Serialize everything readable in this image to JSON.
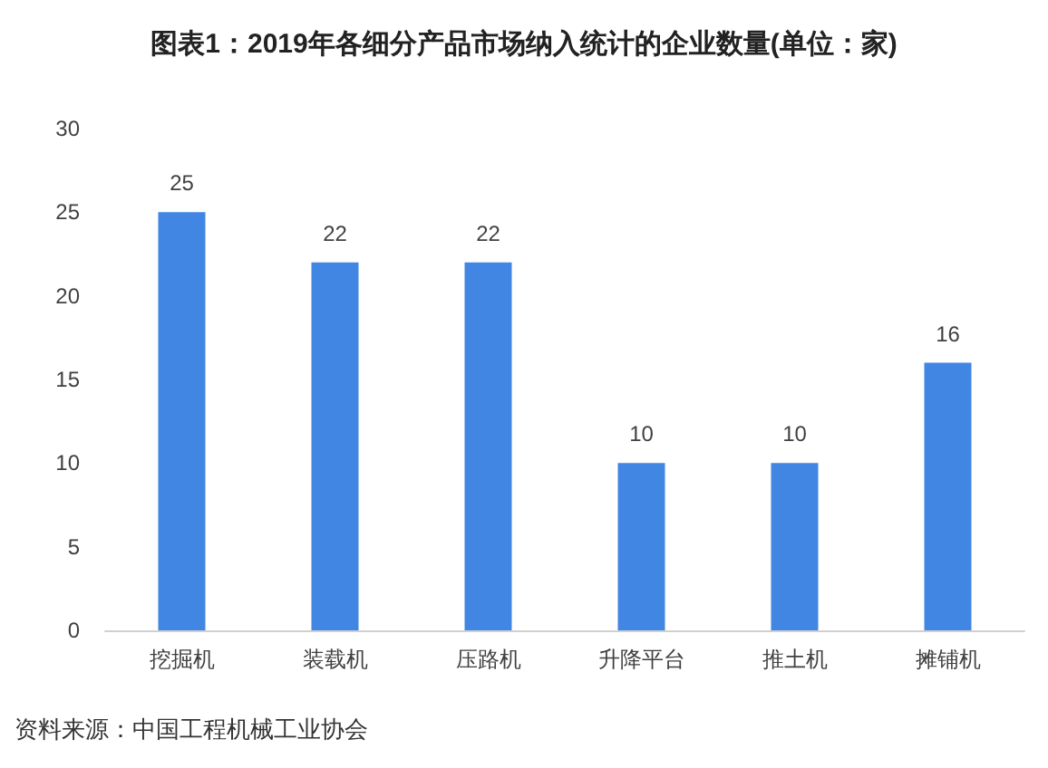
{
  "chart_data": {
    "type": "bar",
    "title": "图表1：2019年各细分产品市场纳入统计的企业数量(单位：家)",
    "categories": [
      "挖掘机",
      "装载机",
      "压路机",
      "升降平台",
      "推土机",
      "摊铺机"
    ],
    "values": [
      25,
      22,
      22,
      10,
      10,
      16
    ],
    "color": "#4186e2",
    "ylim": [
      0,
      30
    ],
    "yticks": [
      0,
      5,
      10,
      15,
      20,
      25,
      30
    ],
    "data_labels": true,
    "annotations": [
      "资料来源：中国工程机械工业协会"
    ]
  }
}
